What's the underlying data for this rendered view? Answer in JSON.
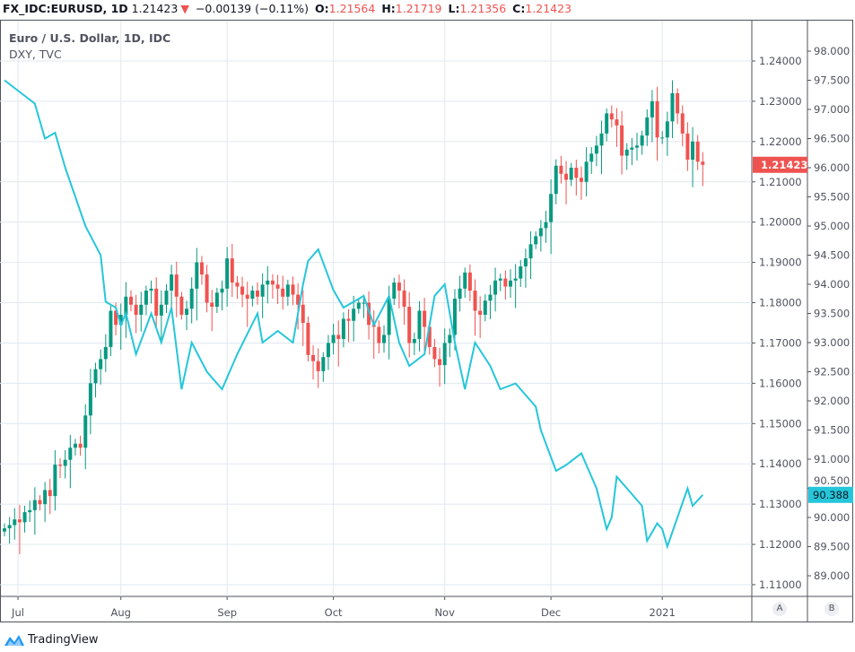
{
  "header": {
    "symbol": "FX_IDC:EURUSD, 1D",
    "last": "1.21423",
    "change": "−0.00139 (−0.11%)",
    "o_label": "O:",
    "o": "1.21564",
    "h_label": "H:",
    "h": "1.21719",
    "l_label": "L:",
    "l": "1.21356",
    "c_label": "C:",
    "c": "1.21423"
  },
  "legend": {
    "title": "Euro / U.S. Dollar, 1D, IDC",
    "overlay": "DXY, TVC"
  },
  "buttons": {
    "a": "A",
    "b": "B"
  },
  "brand": "TradingView",
  "colors": {
    "up": "#089981",
    "down": "#ef5350",
    "dxy": "#26c6da",
    "grid": "#e0e8ef"
  },
  "chart_data": {
    "type": "candlestick+line",
    "title": "Euro / U.S. Dollar, 1D, IDC",
    "x_ticks": [
      {
        "label": "Jul",
        "day": 0
      },
      {
        "label": "Aug",
        "day": 23
      },
      {
        "label": "Sep",
        "day": 44
      },
      {
        "label": "Oct",
        "day": 65
      },
      {
        "label": "Nov",
        "day": 87
      },
      {
        "label": "Dec",
        "day": 108
      },
      {
        "label": "2021",
        "day": 130
      }
    ],
    "eurusd": {
      "name": "EURUSD",
      "axis": "right-inner",
      "ylim": [
        1.105,
        1.25
      ],
      "ticks": [
        "1.24000",
        "1.23000",
        "1.22000",
        "1.21000",
        "1.20000",
        "1.19000",
        "1.18000",
        "1.17000",
        "1.16000",
        "1.15000",
        "1.14000",
        "1.13000",
        "1.12000",
        "1.11000"
      ],
      "last_label": "1.21423",
      "first_open": 1.1232,
      "closes": [
        1.124,
        1.1248,
        1.1262,
        1.1255,
        1.128,
        1.1285,
        1.131,
        1.13,
        1.1335,
        1.132,
        1.1398,
        1.1395,
        1.141,
        1.144,
        1.145,
        1.144,
        1.152,
        1.16,
        1.1635,
        1.166,
        1.169,
        1.178,
        1.1745,
        1.177,
        1.1815,
        1.1795,
        1.177,
        1.1795,
        1.183,
        1.1835,
        1.1768,
        1.1795,
        1.183,
        1.187,
        1.1815,
        1.177,
        1.1785,
        1.1835,
        1.19,
        1.187,
        1.18,
        1.179,
        1.1825,
        1.1835,
        1.191,
        1.185,
        1.184,
        1.182,
        1.181,
        1.183,
        1.1815,
        1.1845,
        1.1855,
        1.1845,
        1.1835,
        1.1815,
        1.1845,
        1.182,
        1.1795,
        1.175,
        1.167,
        1.1655,
        1.163,
        1.1665,
        1.17,
        1.172,
        1.171,
        1.176,
        1.1755,
        1.1785,
        1.18,
        1.18,
        1.1745,
        1.174,
        1.17,
        1.172,
        1.181,
        1.185,
        1.183,
        1.179,
        1.17,
        1.171,
        1.178,
        1.174,
        1.169,
        1.166,
        1.1645,
        1.17,
        1.172,
        1.181,
        1.1835,
        1.1875,
        1.183,
        1.178,
        1.177,
        1.1805,
        1.182,
        1.1855,
        1.186,
        1.184,
        1.1855,
        1.186,
        1.189,
        1.191,
        1.1945,
        1.1965,
        1.1985,
        1.2,
        1.207,
        1.214,
        1.212,
        1.2105,
        1.2135,
        1.211,
        1.21,
        1.215,
        1.217,
        1.219,
        1.222,
        1.227,
        1.2255,
        1.224,
        1.2165,
        1.218,
        1.2185,
        1.219,
        1.2215,
        1.226,
        1.23,
        1.221,
        1.221,
        1.225,
        1.232,
        1.227,
        1.222,
        1.2155,
        1.22,
        1.215,
        1.21423
      ]
    },
    "dxy": {
      "name": "DXY",
      "axis": "right-outer",
      "ylim": [
        88.8,
        98.3
      ],
      "ticks": [
        "98.000",
        "97.500",
        "97.000",
        "96.500",
        "96.000",
        "95.500",
        "95.000",
        "94.500",
        "94.000",
        "93.500",
        "93.000",
        "92.500",
        "92.000",
        "91.500",
        "91.000",
        "90.500",
        "90.000",
        "89.500",
        "89.000"
      ],
      "last_label": "90.388",
      "points": [
        [
          0,
          97.5
        ],
        [
          3,
          97.3
        ],
        [
          6,
          97.1
        ],
        [
          8,
          96.5
        ],
        [
          10,
          96.6
        ],
        [
          12,
          96.0
        ],
        [
          16,
          95.0
        ],
        [
          19,
          94.5
        ],
        [
          20,
          93.7
        ],
        [
          22,
          93.6
        ],
        [
          23,
          93.3
        ],
        [
          24,
          93.5
        ],
        [
          26,
          92.8
        ],
        [
          29,
          93.5
        ],
        [
          31,
          93.0
        ],
        [
          33,
          93.6
        ],
        [
          35,
          92.2
        ],
        [
          37,
          93.0
        ],
        [
          40,
          92.5
        ],
        [
          43,
          92.2
        ],
        [
          46,
          92.8
        ],
        [
          50,
          93.5
        ],
        [
          51,
          93.0
        ],
        [
          54,
          93.2
        ],
        [
          57,
          93.0
        ],
        [
          59,
          94.0
        ],
        [
          60,
          94.4
        ],
        [
          62,
          94.6
        ],
        [
          65,
          93.9
        ],
        [
          67,
          93.6
        ],
        [
          71,
          93.8
        ],
        [
          73,
          93.3
        ],
        [
          76,
          93.8
        ],
        [
          78,
          93.0
        ],
        [
          80,
          92.6
        ],
        [
          83,
          92.8
        ],
        [
          85,
          93.8
        ],
        [
          87,
          94.0
        ],
        [
          89,
          93.0
        ],
        [
          91,
          92.2
        ],
        [
          93,
          93.0
        ],
        [
          96,
          92.6
        ],
        [
          98,
          92.2
        ],
        [
          101,
          92.3
        ],
        [
          105,
          91.9
        ],
        [
          106,
          91.5
        ],
        [
          109,
          90.8
        ],
        [
          111,
          90.9
        ],
        [
          114,
          91.1
        ],
        [
          115,
          90.9
        ],
        [
          117,
          90.5
        ],
        [
          119,
          89.8
        ],
        [
          120,
          90.0
        ],
        [
          121,
          90.7
        ],
        [
          124,
          90.4
        ],
        [
          126,
          90.2
        ],
        [
          127,
          89.6
        ],
        [
          129,
          89.9
        ],
        [
          130,
          89.8
        ],
        [
          131,
          89.5
        ],
        [
          133,
          90.0
        ],
        [
          135,
          90.5
        ],
        [
          136,
          90.2
        ],
        [
          138,
          90.388
        ]
      ]
    }
  }
}
